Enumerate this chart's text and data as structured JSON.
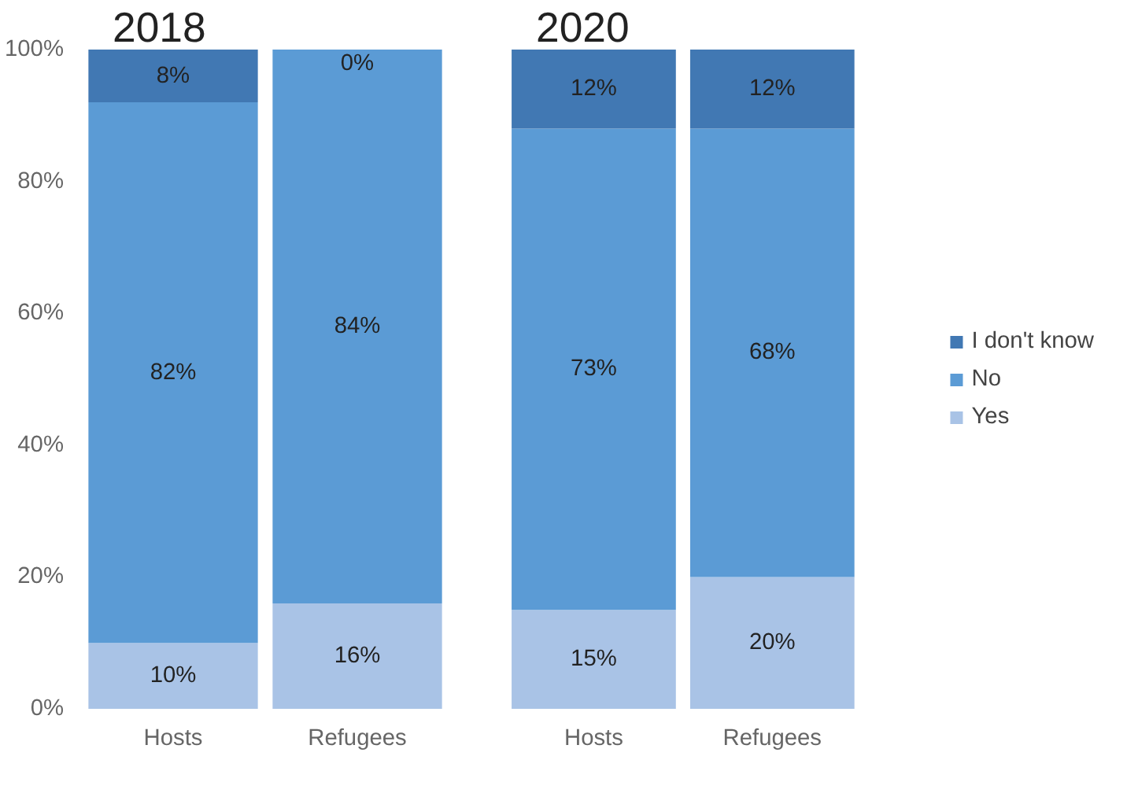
{
  "chart_data": [
    {
      "type": "bar",
      "title": "2018",
      "stacked": true,
      "categories": [
        "Hosts",
        "Refugees"
      ],
      "ylim": [
        0,
        100
      ],
      "yticks": [
        {
          "value": 0,
          "label": "0%"
        },
        {
          "value": 20,
          "label": "20%"
        },
        {
          "value": 40,
          "label": "40%"
        },
        {
          "value": 60,
          "label": "60%"
        },
        {
          "value": 80,
          "label": "80%"
        },
        {
          "value": 100,
          "label": "100%"
        }
      ],
      "series": [
        {
          "color": "#a9c3e6",
          "values": [
            10,
            16
          ],
          "value_labels": [
            "10%",
            "16%"
          ]
        },
        {
          "color": "#5b9bd5",
          "values": [
            82,
            84
          ],
          "value_labels": [
            "82%",
            "84%"
          ]
        },
        {
          "color": "#4178b3",
          "values": [
            8,
            0
          ],
          "value_labels": [
            "8%",
            "0%"
          ]
        }
      ],
      "grid": false,
      "legend": false
    },
    {
      "type": "bar",
      "title": "2020",
      "stacked": true,
      "categories": [
        "Hosts",
        "Refugees"
      ],
      "ylim": [
        0,
        100
      ],
      "tick_labels": "x",
      "series": [
        {
          "name": "Yes",
          "color": "#a9c3e6",
          "values": [
            15,
            20
          ],
          "value_labels": [
            "15%",
            "20%"
          ]
        },
        {
          "name": "No",
          "color": "#5b9bd5",
          "values": [
            73,
            68
          ],
          "value_labels": [
            "73%",
            "68%"
          ]
        },
        {
          "name": "I don't know",
          "color": "#4178b3",
          "values": [
            12,
            12
          ],
          "value_labels": [
            "12%",
            "12%"
          ]
        }
      ],
      "grid": false,
      "legend": "right"
    }
  ]
}
